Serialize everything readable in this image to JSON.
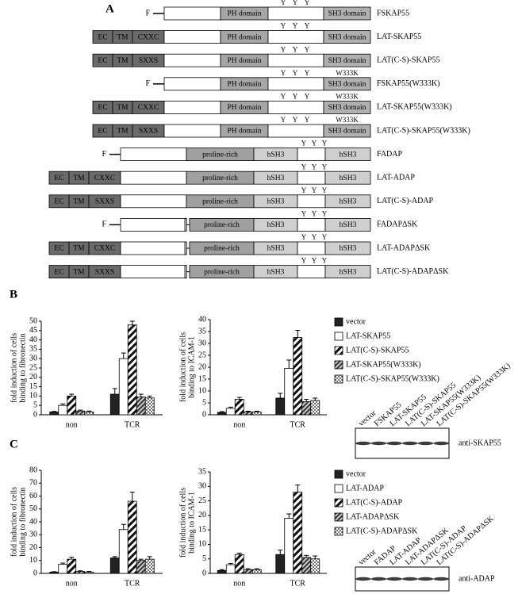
{
  "panel_a": {
    "label": "A",
    "constructs": [
      {
        "prefix": "F",
        "segments": [
          {
            "kind": "skap-n"
          },
          {
            "kind": "ph",
            "text": "PH domain"
          },
          {
            "kind": "skap-mid"
          },
          {
            "kind": "sh3",
            "text": "SH3 domain"
          }
        ],
        "tyrosines": [
          "Y",
          "Y",
          "Y"
        ],
        "name": "FSKAP55"
      },
      {
        "segments": [
          {
            "kind": "ec",
            "text": "EC"
          },
          {
            "kind": "tm",
            "text": "TM"
          },
          {
            "kind": "motif",
            "text": "CXXC"
          },
          {
            "kind": "skap-n"
          },
          {
            "kind": "ph",
            "text": "PH domain"
          },
          {
            "kind": "skap-mid"
          },
          {
            "kind": "sh3",
            "text": "SH3 domain"
          }
        ],
        "tyrosines": [
          "Y",
          "Y",
          "Y"
        ],
        "name": "LAT-SKAP55"
      },
      {
        "segments": [
          {
            "kind": "ec",
            "text": "EC"
          },
          {
            "kind": "tm",
            "text": "TM"
          },
          {
            "kind": "motif",
            "text": "SXXS"
          },
          {
            "kind": "skap-n"
          },
          {
            "kind": "ph",
            "text": "PH domain"
          },
          {
            "kind": "skap-mid"
          },
          {
            "kind": "sh3",
            "text": "SH3 domain"
          }
        ],
        "tyrosines": [
          "Y",
          "Y",
          "Y"
        ],
        "name": "LAT(C-S)-SKAP55"
      },
      {
        "prefix": "F",
        "segments": [
          {
            "kind": "skap-n"
          },
          {
            "kind": "ph",
            "text": "PH domain"
          },
          {
            "kind": "skap-mid"
          },
          {
            "kind": "sh3",
            "text": "SH3 domain"
          }
        ],
        "tyrosines": [
          "Y",
          "Y",
          "Y"
        ],
        "mutation": "W333K",
        "name": "FSKAP55(W333K)"
      },
      {
        "segments": [
          {
            "kind": "ec",
            "text": "EC"
          },
          {
            "kind": "tm",
            "text": "TM"
          },
          {
            "kind": "motif",
            "text": "CXXC"
          },
          {
            "kind": "skap-n"
          },
          {
            "kind": "ph",
            "text": "PH domain"
          },
          {
            "kind": "skap-mid"
          },
          {
            "kind": "sh3",
            "text": "SH3 domain"
          }
        ],
        "tyrosines": [
          "Y",
          "Y",
          "Y"
        ],
        "mutation": "W333K",
        "name": "LAT-SKAP55(W333K)"
      },
      {
        "segments": [
          {
            "kind": "ec",
            "text": "EC"
          },
          {
            "kind": "tm",
            "text": "TM"
          },
          {
            "kind": "motif",
            "text": "SXXS"
          },
          {
            "kind": "skap-n"
          },
          {
            "kind": "ph",
            "text": "PH domain"
          },
          {
            "kind": "skap-mid"
          },
          {
            "kind": "sh3",
            "text": "SH3 domain"
          }
        ],
        "tyrosines": [
          "Y",
          "Y",
          "Y"
        ],
        "mutation": "W333K",
        "name": "LAT(C-S)-SKAP55(W333K)"
      },
      {
        "prefix": "F",
        "segments": [
          {
            "kind": "adap-n"
          },
          {
            "kind": "pro",
            "text": "proline-rich"
          },
          {
            "kind": "hsh3",
            "text": "hSH3"
          },
          {
            "kind": "adap-mid"
          },
          {
            "kind": "hsh3-c",
            "text": "hSH3"
          }
        ],
        "tyrosines": [
          "Y",
          "Y",
          "Y"
        ],
        "name": "FADAP"
      },
      {
        "segments": [
          {
            "kind": "ec",
            "text": "EC"
          },
          {
            "kind": "tm",
            "text": "TM"
          },
          {
            "kind": "motif",
            "text": "CXXC"
          },
          {
            "kind": "adap-n"
          },
          {
            "kind": "pro",
            "text": "proline-rich"
          },
          {
            "kind": "hsh3",
            "text": "hSH3"
          },
          {
            "kind": "adap-mid"
          },
          {
            "kind": "hsh3-c",
            "text": "hSH3"
          }
        ],
        "tyrosines": [
          "Y",
          "Y",
          "Y"
        ],
        "name": "LAT-ADAP"
      },
      {
        "segments": [
          {
            "kind": "ec",
            "text": "EC"
          },
          {
            "kind": "tm",
            "text": "TM"
          },
          {
            "kind": "motif",
            "text": "SXXS"
          },
          {
            "kind": "adap-n"
          },
          {
            "kind": "pro",
            "text": "proline-rich"
          },
          {
            "kind": "hsh3",
            "text": "hSH3"
          },
          {
            "kind": "adap-mid"
          },
          {
            "kind": "hsh3-c",
            "text": "hSH3"
          }
        ],
        "tyrosines": [
          "Y",
          "Y",
          "Y"
        ],
        "name": "LAT(C-S)-ADAP"
      },
      {
        "prefix": "F",
        "segments": [
          {
            "kind": "adap-n-d"
          },
          {
            "kind": "gap"
          },
          {
            "kind": "pro-d",
            "text": "proline-rich"
          },
          {
            "kind": "hsh3",
            "text": "hSH3"
          },
          {
            "kind": "adap-mid"
          },
          {
            "kind": "hsh3-c",
            "text": "hSH3"
          }
        ],
        "tyrosines": [
          "Y",
          "Y",
          "Y"
        ],
        "name": "FADAPΔSK"
      },
      {
        "segments": [
          {
            "kind": "ec",
            "text": "EC"
          },
          {
            "kind": "tm",
            "text": "TM"
          },
          {
            "kind": "motif",
            "text": "CXXC"
          },
          {
            "kind": "adap-n-d"
          },
          {
            "kind": "gap"
          },
          {
            "kind": "pro-d",
            "text": "proline-rich"
          },
          {
            "kind": "hsh3",
            "text": "hSH3"
          },
          {
            "kind": "adap-mid"
          },
          {
            "kind": "hsh3-c",
            "text": "hSH3"
          }
        ],
        "tyrosines": [
          "Y",
          "Y",
          "Y"
        ],
        "name": "LAT-ADAPΔSK"
      },
      {
        "segments": [
          {
            "kind": "ec",
            "text": "EC"
          },
          {
            "kind": "tm",
            "text": "TM"
          },
          {
            "kind": "motif",
            "text": "SXXS"
          },
          {
            "kind": "adap-n-d"
          },
          {
            "kind": "gap"
          },
          {
            "kind": "pro-d",
            "text": "proline-rich"
          },
          {
            "kind": "hsh3",
            "text": "hSH3"
          },
          {
            "kind": "adap-mid"
          },
          {
            "kind": "hsh3-c",
            "text": "hSH3"
          }
        ],
        "tyrosines": [
          "Y",
          "Y",
          "Y"
        ],
        "name": "LAT(C-S)-ADAPΔSK"
      }
    ]
  },
  "panel_labels": [
    "B",
    "C"
  ],
  "chart_data": [
    {
      "type": "bar",
      "y_label": [
        "fold induction of cells",
        "binding to fibronectin"
      ],
      "categories": [
        "non",
        "TCR"
      ],
      "ylim": [
        0,
        50
      ],
      "yticks": [
        0,
        5,
        10,
        15,
        20,
        25,
        30,
        35,
        40,
        45,
        50
      ],
      "series": [
        {
          "pattern": "solid",
          "values": [
            1.5,
            11
          ],
          "errors": [
            0.3,
            3
          ]
        },
        {
          "pattern": "none",
          "values": [
            5,
            30
          ],
          "errors": [
            0.8,
            3
          ]
        },
        {
          "pattern": "diagonal",
          "values": [
            10,
            48
          ],
          "errors": [
            1,
            2
          ]
        },
        {
          "pattern": "dense",
          "values": [
            2,
            9.5
          ],
          "errors": [
            0.5,
            1.5
          ]
        },
        {
          "pattern": "dots",
          "values": [
            1.5,
            9
          ],
          "errors": [
            0.5,
            1
          ]
        }
      ]
    },
    {
      "type": "bar",
      "y_label": [
        "fold induction of cells",
        "binding to ICAM-1"
      ],
      "categories": [
        "non",
        "TCR"
      ],
      "ylim": [
        0,
        40
      ],
      "yticks": [
        0,
        5,
        10,
        15,
        20,
        25,
        30,
        35,
        40
      ],
      "legend": "right",
      "series": [
        {
          "name": "vector",
          "pattern": "solid",
          "values": [
            1,
            7
          ],
          "errors": [
            0.3,
            2
          ]
        },
        {
          "name": "LAT-SKAP55",
          "pattern": "none",
          "values": [
            2.7,
            19.5
          ],
          "errors": [
            0.5,
            3.5
          ]
        },
        {
          "name": "LAT(C-S)-SKAP55",
          "pattern": "diagonal",
          "values": [
            6.5,
            32.5
          ],
          "errors": [
            0.8,
            3
          ]
        },
        {
          "name": "LAT-SKAP55(W333K)",
          "pattern": "dense",
          "values": [
            1.2,
            5.5
          ],
          "errors": [
            0.3,
            1
          ]
        },
        {
          "name": "LAT(C-S)-SKAP55(W333K)",
          "pattern": "dots",
          "values": [
            1.2,
            6
          ],
          "errors": [
            0.3,
            1
          ]
        }
      ]
    },
    {
      "type": "bar",
      "y_label": [
        "fold induction of cells",
        "binding to fibronectin"
      ],
      "categories": [
        "non",
        "TCR"
      ],
      "ylim": [
        0,
        80
      ],
      "yticks": [
        0,
        10,
        20,
        30,
        40,
        50,
        60,
        70,
        80
      ],
      "series": [
        {
          "pattern": "solid",
          "values": [
            1,
            12
          ],
          "errors": [
            0.3,
            1
          ]
        },
        {
          "pattern": "none",
          "values": [
            7,
            34
          ],
          "errors": [
            1,
            4
          ]
        },
        {
          "pattern": "diagonal",
          "values": [
            11,
            56
          ],
          "errors": [
            1.5,
            7
          ]
        },
        {
          "pattern": "dense",
          "values": [
            1.5,
            10
          ],
          "errors": [
            0.5,
            1
          ]
        },
        {
          "pattern": "dots",
          "values": [
            1,
            11
          ],
          "errors": [
            0.5,
            2
          ]
        }
      ]
    },
    {
      "type": "bar",
      "y_label": [
        "fold induction of cells",
        "binding to ICAM-1"
      ],
      "categories": [
        "non",
        "TCR"
      ],
      "ylim": [
        0,
        35
      ],
      "yticks": [
        0,
        5,
        10,
        15,
        20,
        25,
        30,
        35
      ],
      "legend": "right",
      "series": [
        {
          "name": "vector",
          "pattern": "solid",
          "values": [
            1,
            6.5
          ],
          "errors": [
            0.3,
            1.5
          ]
        },
        {
          "name": "LAT-ADAP",
          "pattern": "none",
          "values": [
            3,
            19
          ],
          "errors": [
            0.4,
            1.5
          ]
        },
        {
          "name": "LAT(C-S)-ADAP",
          "pattern": "diagonal",
          "values": [
            6.5,
            28
          ],
          "errors": [
            0.5,
            2.5
          ]
        },
        {
          "name": "LAT-ADAPΔSK",
          "pattern": "dense",
          "values": [
            1.3,
            5.5
          ],
          "errors": [
            0.3,
            0.7
          ]
        },
        {
          "name": "LAT(C-S)-ADAPΔSK",
          "pattern": "dots",
          "values": [
            1.3,
            5
          ],
          "errors": [
            0.3,
            1
          ]
        }
      ]
    }
  ],
  "blots": [
    {
      "lanes": [
        "vector",
        "FSKAP55",
        "LAT-SKAP55",
        "LAT(C-S)-SKAP55",
        "LAT-SKAP55(W333K)",
        "LAT(C-S)-SKAP55(W333K)"
      ],
      "antibody": "anti-SKAP55"
    },
    {
      "lanes": [
        "vector",
        "FADAP",
        "LAT-ADAP",
        "LAT-ADAPΔSK",
        "LAT(C-S)-ADAP",
        "LAT(C-S)-ADAPΔSK"
      ],
      "antibody": "anti-ADAP"
    }
  ]
}
